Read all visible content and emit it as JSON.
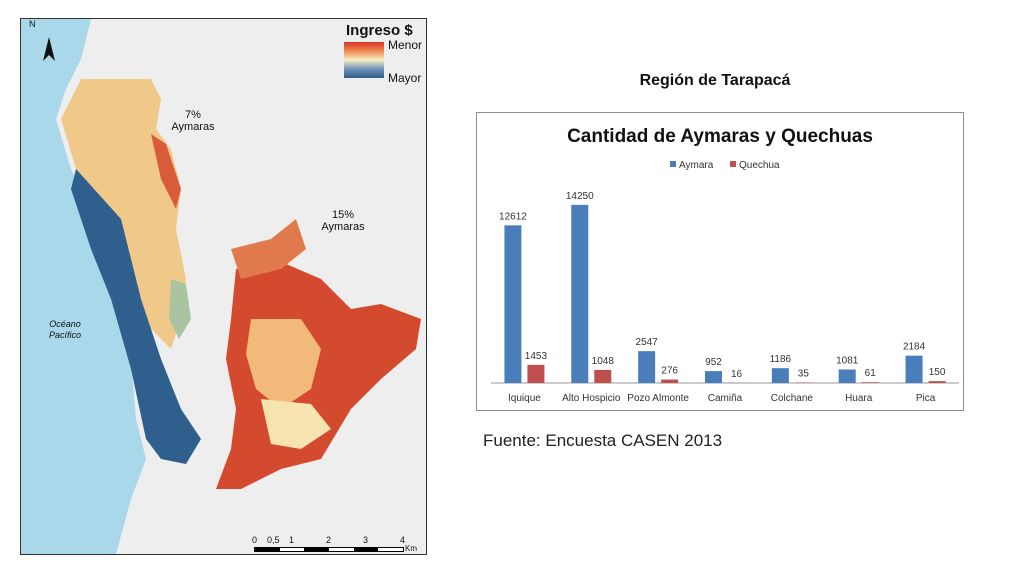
{
  "map": {
    "legend_title": "Ingreso $",
    "legend_low": "Menor",
    "legend_high": "Mayor",
    "north_label": "N",
    "label_7": "7%",
    "label_7b": "Aymaras",
    "label_15": "15%",
    "label_15b": "Aymaras",
    "ocean_line1": "Océano",
    "ocean_line2": "Pacífico",
    "scale_ticks": [
      "0",
      "0,5",
      "1",
      "2",
      "3",
      "4"
    ],
    "scale_unit": "Km",
    "colors": {
      "ocean": "#a9d8ea",
      "low_income": "#d8342a",
      "high_income": "#2c5a86",
      "mid": "#f5f0c4"
    }
  },
  "region_title": "Región de Tarapacá",
  "source": "Fuente: Encuesta CASEN 2013",
  "chart_data": {
    "type": "bar",
    "title": "Cantidad de Aymaras y Quechuas",
    "categories": [
      "Iquique",
      "Alto Hospicio",
      "Pozo Almonte",
      "Camiña",
      "Colchane",
      "Huara",
      "Pica"
    ],
    "series": [
      {
        "name": "Aymara",
        "color": "#4a7ebb",
        "values": [
          12612,
          14250,
          2547,
          952,
          1186,
          1081,
          2184
        ]
      },
      {
        "name": "Quechua",
        "color": "#c0504d",
        "values": [
          1453,
          1048,
          276,
          16,
          35,
          61,
          150
        ]
      }
    ],
    "ylim": [
      0,
      16000
    ],
    "grid": false,
    "legend_position": "top-center"
  }
}
